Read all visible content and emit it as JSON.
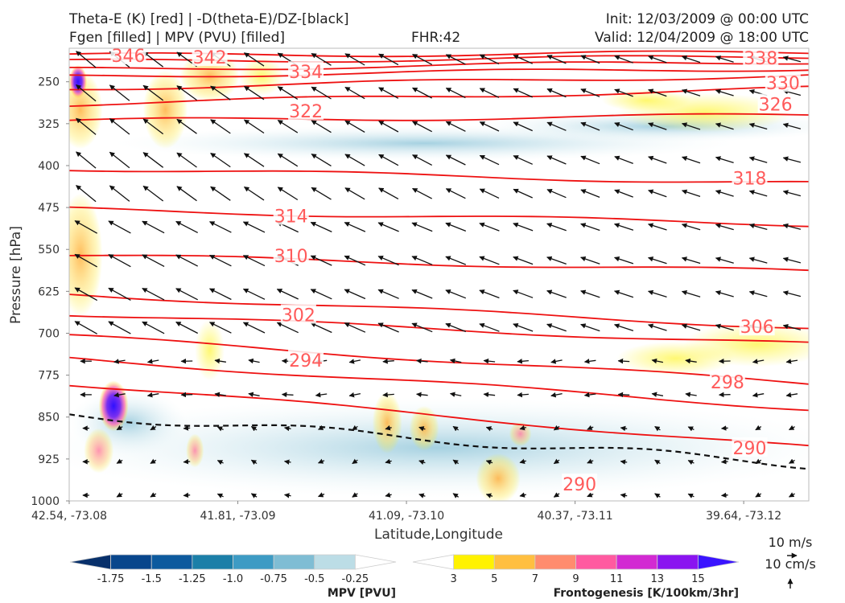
{
  "header": {
    "title_line1": "Theta-E (K) [red] | -D(theta-E)/DZ-[black]",
    "title_line2": "Fgen [filled] | MPV (PVU) [filled]",
    "fhr": "FHR:42",
    "init": "Init: 12/03/2009 @ 00:00 UTC",
    "valid": "Valid: 12/04/2009 @ 18:00 UTC"
  },
  "chart_data": {
    "type": "cross-section",
    "xlabel": "Latitude,Longitude",
    "ylabel": "Pressure [hPa]",
    "x_ticks": [
      "42.54, -73.08",
      "41.81, -73.09",
      "41.09, -73.10",
      "40.37, -73.11",
      "39.64, -73.12"
    ],
    "y_ticks": [
      250,
      325,
      400,
      475,
      550,
      625,
      700,
      775,
      850,
      925,
      1000
    ],
    "ylim": [
      190,
      1000
    ],
    "y_inverted": true,
    "theta_e_contours": [
      {
        "label": "346",
        "y_start": 203,
        "y_end": 198
      },
      {
        "label": "342",
        "y_start": 214,
        "y_end": 205
      },
      {
        "label": "338",
        "y_start": 228,
        "y_end": 214
      },
      {
        "label": "334",
        "y_start": 240,
        "y_end": 226
      },
      {
        "label": "330",
        "y_start": 262,
        "y_end": 238
      },
      {
        "label": "326",
        "y_start": 290,
        "y_end": 262
      },
      {
        "label": "322",
        "y_start": 320,
        "y_end": 310
      },
      {
        "label": "318",
        "y_start": 405,
        "y_end": 432
      },
      {
        "label": "314",
        "y_start": 478,
        "y_end": 505
      },
      {
        "label": "310",
        "y_start": 560,
        "y_end": 590
      },
      {
        "label": "306",
        "y_start": 630,
        "y_end": 690
      },
      {
        "label": "302",
        "y_start": 665,
        "y_end": 720
      },
      {
        "label": "298",
        "y_start": 705,
        "y_end": 790
      },
      {
        "label": "294",
        "y_start": 745,
        "y_end": 835
      },
      {
        "label": "290",
        "y_start": 790,
        "y_end": 905
      }
    ],
    "contour_labels": [
      {
        "text": "346",
        "x": 0.08,
        "y": 203
      },
      {
        "text": "342",
        "x": 0.19,
        "y": 206
      },
      {
        "text": "338",
        "x": 0.935,
        "y": 207
      },
      {
        "text": "334",
        "x": 0.32,
        "y": 232
      },
      {
        "text": "330",
        "x": 0.965,
        "y": 252
      },
      {
        "text": "326",
        "x": 0.955,
        "y": 290
      },
      {
        "text": "322",
        "x": 0.32,
        "y": 302
      },
      {
        "text": "318",
        "x": 0.92,
        "y": 422
      },
      {
        "text": "314",
        "x": 0.3,
        "y": 490
      },
      {
        "text": "310",
        "x": 0.3,
        "y": 561
      },
      {
        "text": "306",
        "x": 0.93,
        "y": 688
      },
      {
        "text": "302",
        "x": 0.31,
        "y": 667
      },
      {
        "text": "298",
        "x": 0.89,
        "y": 787
      },
      {
        "text": "294",
        "x": 0.32,
        "y": 748
      },
      {
        "text": "290",
        "x": 0.92,
        "y": 905
      },
      {
        "text": "290",
        "x": 0.69,
        "y": 970
      }
    ],
    "mpv_colorbar": {
      "title": "MPV [PVU]",
      "ticks": [
        "-1.75",
        "-1.5",
        "-1.25",
        "-1.0",
        "-0.75",
        "-0.5",
        "-0.25"
      ],
      "colors": [
        "#08306b",
        "#08468c",
        "#0d5a9e",
        "#1b7fa8",
        "#3d9bc4",
        "#7fbdd4",
        "#bcdde6",
        "#ffffff"
      ]
    },
    "fgen_colorbar": {
      "title": "Frontogenesis [K/100km/3hr]",
      "ticks": [
        "3",
        "5",
        "7",
        "9",
        "11",
        "13",
        "15"
      ],
      "colors": [
        "#ffffff",
        "#fff200",
        "#ffbf40",
        "#ff8c6e",
        "#ff5aa0",
        "#d22ad2",
        "#8a14f0",
        "#3a14ff"
      ]
    },
    "vector_key": {
      "label_top": "10 m/s",
      "label_bottom": "10 cm/s"
    }
  }
}
